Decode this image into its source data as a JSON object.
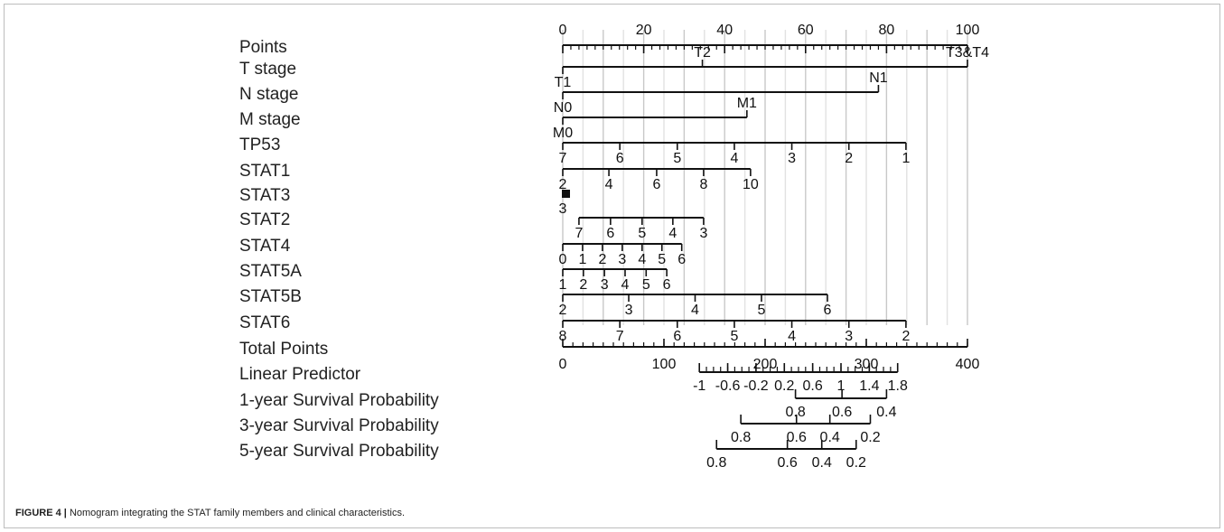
{
  "figure": {
    "caption_label": "FIGURE 4 |",
    "caption_text": "Nomogram integrating the STAT family members and clinical characteristics."
  },
  "chart_data": {
    "type": "nomogram",
    "grid": true,
    "variables": [
      {
        "name": "Points",
        "axis": "points",
        "ticks": [
          {
            "value": 0,
            "label": "0"
          },
          {
            "value": 20,
            "label": "20"
          },
          {
            "value": 40,
            "label": "40"
          },
          {
            "value": 60,
            "label": "60"
          },
          {
            "value": 80,
            "label": "80"
          },
          {
            "value": 100,
            "label": "100"
          }
        ],
        "minor_step": 2,
        "range": [
          0,
          100
        ]
      },
      {
        "name": "T stage",
        "ticks": [
          {
            "label": "T1",
            "points": 0
          },
          {
            "label": "T2",
            "points": 34.5
          },
          {
            "label": "T3&T4",
            "points": 100
          }
        ]
      },
      {
        "name": "N stage",
        "ticks": [
          {
            "label": "N0",
            "points": 0
          },
          {
            "label": "N1",
            "points": 78
          }
        ]
      },
      {
        "name": "M stage",
        "ticks": [
          {
            "label": "M0",
            "points": 0
          },
          {
            "label": "M1",
            "points": 45.5
          }
        ]
      },
      {
        "name": "TP53",
        "ticks": [
          {
            "label": "7",
            "points": 0
          },
          {
            "label": "6",
            "points": 14.1
          },
          {
            "label": "5",
            "points": 28.3
          },
          {
            "label": "4",
            "points": 42.4
          },
          {
            "label": "3",
            "points": 56.6
          },
          {
            "label": "2",
            "points": 70.7
          },
          {
            "label": "1",
            "points": 84.8
          }
        ]
      },
      {
        "name": "STAT1",
        "ticks": [
          {
            "label": "2",
            "points": 0
          },
          {
            "label": "4",
            "points": 11.4
          },
          {
            "label": "6",
            "points": 23.2
          },
          {
            "label": "8",
            "points": 34.8
          },
          {
            "label": "10",
            "points": 46.4
          }
        ]
      },
      {
        "name": "STAT3",
        "ticks": [
          {
            "label": "3",
            "points": 0
          }
        ]
      },
      {
        "name": "STAT2",
        "ticks": [
          {
            "label": "7",
            "points": 4
          },
          {
            "label": "6",
            "points": 11.8
          },
          {
            "label": "5",
            "points": 19.6
          },
          {
            "label": "4",
            "points": 27.2
          },
          {
            "label": "3",
            "points": 34.8
          }
        ]
      },
      {
        "name": "STAT4",
        "ticks": [
          {
            "label": "0",
            "points": 0
          },
          {
            "label": "1",
            "points": 4.9
          },
          {
            "label": "2",
            "points": 9.8
          },
          {
            "label": "3",
            "points": 14.7
          },
          {
            "label": "4",
            "points": 19.6
          },
          {
            "label": "5",
            "points": 24.5
          },
          {
            "label": "6",
            "points": 29.4
          }
        ]
      },
      {
        "name": "STAT5A",
        "ticks": [
          {
            "label": "1",
            "points": 0
          },
          {
            "label": "2",
            "points": 5.1
          },
          {
            "label": "3",
            "points": 10.3
          },
          {
            "label": "4",
            "points": 15.4
          },
          {
            "label": "5",
            "points": 20.6
          },
          {
            "label": "6",
            "points": 25.7
          }
        ]
      },
      {
        "name": "STAT5B",
        "ticks": [
          {
            "label": "2",
            "points": 0
          },
          {
            "label": "3",
            "points": 16.3
          },
          {
            "label": "4",
            "points": 32.7
          },
          {
            "label": "5",
            "points": 49.1
          },
          {
            "label": "6",
            "points": 65.4
          }
        ]
      },
      {
        "name": "STAT6",
        "ticks": [
          {
            "label": "8",
            "points": 0
          },
          {
            "label": "7",
            "points": 14.1
          },
          {
            "label": "6",
            "points": 28.3
          },
          {
            "label": "5",
            "points": 42.4
          },
          {
            "label": "4",
            "points": 56.6
          },
          {
            "label": "3",
            "points": 70.7
          },
          {
            "label": "2",
            "points": 84.8
          }
        ]
      },
      {
        "name": "Total Points",
        "axis": "total",
        "ticks": [
          {
            "value": 0,
            "label": "0"
          },
          {
            "value": 100,
            "label": "100"
          },
          {
            "value": 200,
            "label": "200"
          },
          {
            "value": 300,
            "label": "300"
          },
          {
            "value": 400,
            "label": "400"
          }
        ],
        "minor_step": 10,
        "range": [
          0,
          400
        ]
      },
      {
        "name": "Linear Predictor",
        "ticks": [
          {
            "label": "-1",
            "total": 135
          },
          {
            "label": "-0.6",
            "total": 163
          },
          {
            "label": "-0.2",
            "total": 191
          },
          {
            "label": "0.2",
            "total": 219
          },
          {
            "label": "0.6",
            "total": 247
          },
          {
            "label": "1",
            "total": 275
          },
          {
            "label": "1.4",
            "total": 303
          },
          {
            "label": "1.8",
            "total": 331
          }
        ],
        "minor_step_total": 7
      },
      {
        "name": "1-year Survival Probability",
        "ticks": [
          {
            "label": "0.8",
            "total": 230
          },
          {
            "label": "0.6",
            "total": 276
          },
          {
            "label": "0.4",
            "total": 320
          }
        ]
      },
      {
        "name": "3-year Survival Probability",
        "ticks": [
          {
            "label": "0.8",
            "total": 176
          },
          {
            "label": "0.6",
            "total": 231
          },
          {
            "label": "0.4",
            "total": 264
          },
          {
            "label": "0.2",
            "total": 304
          }
        ]
      },
      {
        "name": "5-year Survival Probability",
        "ticks": [
          {
            "label": "0.8",
            "total": 152
          },
          {
            "label": "0.6",
            "total": 222
          },
          {
            "label": "0.4",
            "total": 256
          },
          {
            "label": "0.2",
            "total": 290
          }
        ]
      }
    ]
  }
}
